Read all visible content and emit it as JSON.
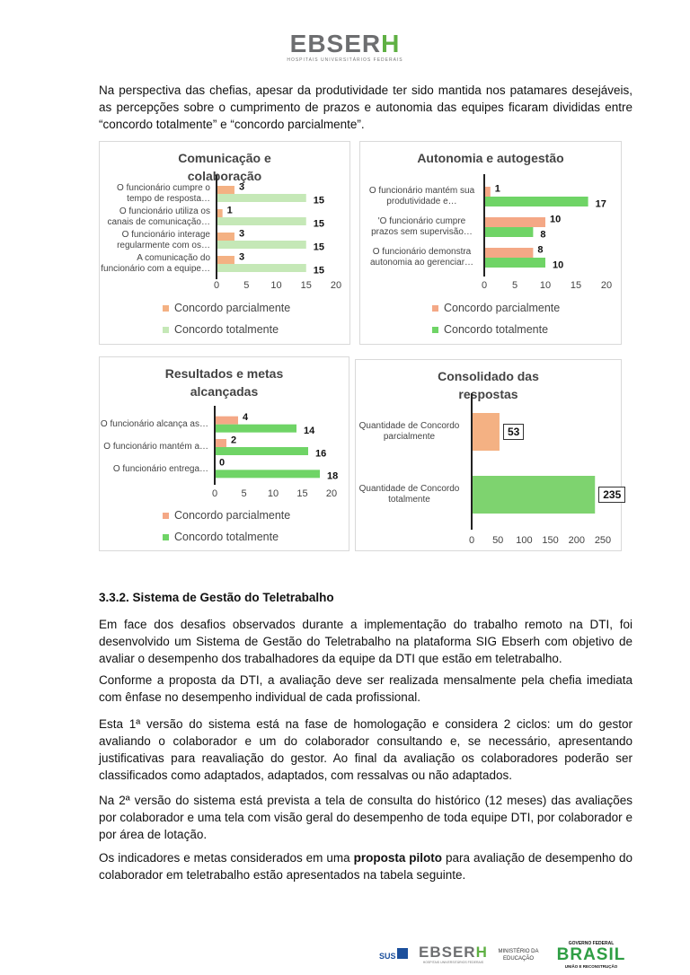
{
  "header": {
    "brand": "EBSERH",
    "brand_sub": "HOSPITAIS UNIVERSITÁRIOS FEDERAIS"
  },
  "intro": "Na perspectiva das chefias, apesar da produtividade ter sido mantida nos patamares desejáveis, as percepções sobre o cumprimento de prazos e autonomia das equipes ficaram divididas entre “concordo totalmente” e “concordo parcialmente”.",
  "chart_data": [
    {
      "type": "hbar",
      "title": "Comunicação e colaboração",
      "categories": [
        "O funcionário cumpre o tempo de resposta…",
        "O funcionário utiliza os canais de comunicação…",
        "O funcionário interage regularmente com os…",
        "A comunicação do funcionário com a equipe…"
      ],
      "series": [
        {
          "name": "Concordo parcialmente",
          "color": "#f4b183",
          "values": [
            3,
            1,
            3,
            3
          ]
        },
        {
          "name": "Concordo totalmente",
          "color": "#c5e8b7",
          "values": [
            15,
            15,
            15,
            15
          ]
        }
      ],
      "xlim": [
        0,
        20
      ],
      "xticks": [
        0,
        5,
        10,
        15,
        20
      ]
    },
    {
      "type": "hbar",
      "title": "Autonomia e autogestão",
      "categories": [
        "O funcionário mantém sua produtividade e…",
        "'O funcionário cumpre prazos sem supervisão…",
        "O funcionário demonstra autonomia ao gerenciar…"
      ],
      "series": [
        {
          "name": "Concordo parcialmente",
          "color": "#f4a886",
          "values": [
            1,
            10,
            8
          ]
        },
        {
          "name": "Concordo totalmente",
          "color": "#6fd466",
          "values": [
            17,
            8,
            10
          ]
        }
      ],
      "xlim": [
        0,
        20
      ],
      "xticks": [
        0,
        5,
        10,
        15,
        20
      ]
    },
    {
      "type": "hbar",
      "title": "Resultados e metas alcançadas",
      "categories": [
        "O funcionário alcança as…",
        "O funcionário mantém a…",
        "O funcionário entrega…"
      ],
      "series": [
        {
          "name": "Concordo parcialmente",
          "color": "#f4a886",
          "values": [
            4,
            2,
            0
          ]
        },
        {
          "name": "Concordo totalmente",
          "color": "#6fd466",
          "values": [
            14,
            16,
            18
          ]
        }
      ],
      "xlim": [
        0,
        20
      ],
      "xticks": [
        0,
        5,
        10,
        15,
        20
      ]
    },
    {
      "type": "hbar",
      "title": "Consolidado das respostas",
      "categories": [
        "Quantidade de Concordo parcialmente",
        "Quantidade de Concordo totalmente"
      ],
      "values": [
        53,
        235
      ],
      "colors": [
        "#f4b183",
        "#7ed36f"
      ],
      "xlim": [
        0,
        250
      ],
      "xticks": [
        0,
        50,
        100,
        150,
        200,
        250
      ]
    }
  ],
  "section": {
    "heading": "3.3.2. Sistema de Gestão do Teletrabalho",
    "paragraphs": [
      "Em face dos desafios observados durante a implementação do trabalho remoto na DTI, foi desenvolvido um Sistema de Gestão do Teletrabalho na plataforma SIG Ebserh com objetivo de avaliar o desempenho dos trabalhadores da equipe da DTI que estão em teletrabalho.",
      "Conforme a proposta da DTI, a avaliação deve ser realizada mensalmente pela chefia imediata com ênfase no desempenho individual de cada profissional.",
      "Esta 1ª versão do sistema está na fase de homologação e considera 2 ciclos: um do gestor avaliando o colaborador e um do colaborador consultando e, se necessário, apresentando justificativas para reavaliação do gestor. Ao final da avaliação os colaboradores poderão ser classificados como adaptados, adaptados, com ressalvas ou não adaptados.",
      "Na 2ª versão do sistema está prevista a tela de consulta do histórico (12 meses) das avaliações por colaborador e uma tela com visão geral do desempenho de toda equipe DTI, por colaborador e por área de lotação."
    ],
    "last": {
      "before": "Os indicadores e metas considerados em uma ",
      "bold": "proposta piloto",
      "after": " para avaliação de desempenho do colaborador em teletrabalho estão apresentados na tabela seguinte."
    }
  },
  "footer": {
    "sus": "SUS",
    "brand": "EBSERH",
    "brand_sub": "HOSPITAIS UNIVERSITÁRIOS FEDERAIS",
    "ministry": "MINISTÉRIO DA EDUCAÇÃO",
    "gov": "GOVERNO FEDERAL",
    "country": "BRASIL",
    "motto": "UNIÃO E RECONSTRUÇÃO"
  }
}
